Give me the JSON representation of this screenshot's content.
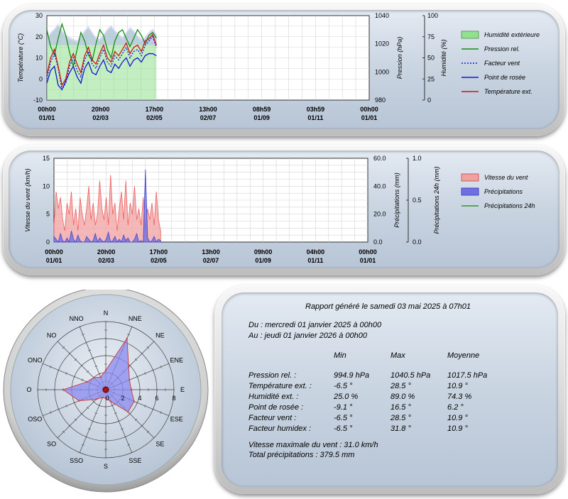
{
  "colors": {
    "humidity_fill": "#8fe08f",
    "humidity_band": "#b8b8f0",
    "pressure": "#138f13",
    "windchill": "#1a1add",
    "dewpoint": "#1515d0",
    "temperature": "#d01515",
    "wind_fill": "#f2a0a0",
    "wind_stroke": "#ee6060",
    "rain_fill": "#7070e0",
    "rain24": "#2a9a2a",
    "rose_fill": "#8a8af0",
    "rose_stroke": "#cc4444"
  },
  "chart_data": [
    {
      "type": "line",
      "x_tick_labels": [
        [
          "00h00",
          "01/01"
        ],
        [
          "20h00",
          "02/03"
        ],
        [
          "17h00",
          "02/05"
        ],
        [
          "13h00",
          "02/07"
        ],
        [
          "08h59",
          "01/09"
        ],
        [
          "03h59",
          "01/11"
        ],
        [
          "00h00",
          "01/01"
        ]
      ],
      "ylabel_left": "Température (°C)",
      "ylim_left": [
        -10,
        30
      ],
      "yticks_left": [
        "30",
        "20",
        "10",
        "0",
        "-10"
      ],
      "ylabel_pressure": "Pression (hPa)",
      "ylim_pressure": [
        980,
        1040
      ],
      "yticks_pressure": [
        "1040",
        "1020",
        "1000",
        "980"
      ],
      "ylabel_humidity": "Humidité (%)",
      "ylim_humidity": [
        0,
        100
      ],
      "yticks_humidity": [
        "100",
        "75",
        "50",
        "25",
        "0"
      ],
      "grid": true,
      "legend_position": "right",
      "data_extent_fraction": 0.34,
      "series": [
        {
          "name": "Humidité extérieure",
          "kind": "area",
          "axis": "humidity",
          "values": [
            70,
            78,
            82,
            88,
            80,
            75,
            72,
            70,
            68,
            74,
            80,
            85,
            78,
            72,
            70,
            75,
            82,
            86,
            80,
            76,
            72,
            78,
            84,
            80,
            74,
            70,
            72,
            78,
            82,
            76
          ]
        },
        {
          "name": "Pression rel.",
          "kind": "line",
          "axis": "pressure",
          "values": [
            1030,
            1018,
            1012,
            1024,
            1034,
            1026,
            1014,
            1004,
            1016,
            1028,
            1022,
            1012,
            1008,
            1020,
            1030,
            1026,
            1016,
            1010,
            1022,
            1028,
            1030,
            1024,
            1018,
            1024,
            1030,
            1026,
            1020,
            1026,
            1028,
            1024
          ]
        },
        {
          "name": "Facteur vent",
          "kind": "dotted",
          "axis": "temperature",
          "values": [
            0,
            8,
            12,
            5,
            -5,
            -2,
            6,
            10,
            4,
            1,
            9,
            13,
            7,
            5,
            10,
            14,
            8,
            6,
            11,
            9,
            12,
            15,
            10,
            13,
            14,
            11,
            16,
            18,
            20,
            15
          ]
        },
        {
          "name": "Point de rosée",
          "kind": "line",
          "axis": "temperature",
          "values": [
            -2,
            4,
            6,
            -3,
            -5,
            -1,
            3,
            6,
            1,
            -2,
            5,
            8,
            3,
            2,
            6,
            9,
            4,
            3,
            7,
            5,
            8,
            10,
            6,
            9,
            10,
            8,
            11,
            12,
            12,
            11
          ]
        },
        {
          "name": "Température ext.",
          "kind": "line",
          "axis": "temperature",
          "values": [
            2,
            10,
            14,
            6,
            -3,
            0,
            8,
            12,
            7,
            3,
            11,
            15,
            9,
            7,
            12,
            16,
            10,
            8,
            13,
            11,
            14,
            17,
            12,
            15,
            16,
            13,
            18,
            19,
            21,
            16
          ]
        }
      ]
    },
    {
      "type": "area",
      "x_tick_labels": [
        [
          "00h00",
          "01/01"
        ],
        [
          "20h00",
          "02/03"
        ],
        [
          "17h00",
          "02/05"
        ],
        [
          "13h00",
          "02/07"
        ],
        [
          "09h00",
          "01/09"
        ],
        [
          "04h00",
          "01/11"
        ],
        [
          "00h00",
          "01/01"
        ]
      ],
      "ylabel_left": "Vitesse du vent (km/h)",
      "ylim_left": [
        0,
        15
      ],
      "yticks_left": [
        "15",
        "10",
        "5",
        "0"
      ],
      "ylabel_rain": "Précipitations (mm)",
      "ylim_rain": [
        0,
        60
      ],
      "yticks_rain": [
        "60.0",
        "40.0",
        "20.0",
        "0.0"
      ],
      "ylabel_rain24": "Précipitations 24h (mm)",
      "ylim_rain24": [
        0,
        1
      ],
      "yticks_rain24": [
        "1.0",
        "0.5",
        "0.0"
      ],
      "grid": true,
      "legend_position": "right",
      "data_extent_fraction": 0.34,
      "series": [
        {
          "name": "Vitesse du vent",
          "kind": "area",
          "axis": "wind",
          "values": [
            3,
            9,
            6,
            8,
            4,
            2,
            7,
            5,
            9,
            3,
            6,
            2,
            8,
            5,
            3,
            6,
            10,
            4,
            7,
            3,
            5,
            11,
            6,
            4,
            8,
            3,
            12,
            5,
            7,
            2,
            6,
            9,
            4,
            11,
            3,
            7,
            5,
            10,
            4,
            6,
            3,
            8,
            2,
            6,
            4,
            7,
            3,
            9,
            4,
            2
          ]
        },
        {
          "name": "Précipitations",
          "kind": "area",
          "axis": "rain",
          "values": [
            4,
            2,
            0,
            6,
            1,
            0,
            3,
            0,
            8,
            2,
            0,
            5,
            1,
            0,
            0,
            4,
            2,
            0,
            1,
            6,
            0,
            3,
            1,
            0,
            2,
            7,
            0,
            1,
            4,
            0,
            2,
            0,
            5,
            1,
            3,
            0,
            0,
            2,
            6,
            0,
            1,
            0,
            52,
            3,
            0,
            1,
            4,
            0,
            2,
            1
          ]
        },
        {
          "name": "Précipitations 24h",
          "kind": "line",
          "axis": "rain24",
          "values": []
        }
      ]
    },
    {
      "type": "radar",
      "directions": [
        "N",
        "NNE",
        "NE",
        "ENE",
        "E",
        "ESE",
        "SE",
        "SSE",
        "S",
        "SSO",
        "SO",
        "OSO",
        "O",
        "ONO",
        "NO",
        "NNO"
      ],
      "rlim": [
        0,
        8
      ],
      "rticks": [
        "0",
        "2",
        "4",
        "6",
        "8"
      ],
      "values": [
        2.3,
        6.5,
        3.8,
        3.0,
        3.0,
        3.6,
        3.7,
        1.5,
        1.0,
        1.0,
        1.6,
        3.4,
        5.0,
        2.4,
        2.0,
        1.6
      ]
    }
  ],
  "report": {
    "title": "Rapport généré le samedi 03 mai 2025 à 07h01",
    "from": "Du : mercredi 01 janvier 2025 à 00h00",
    "to": "Au : jeudi 01 janvier 2026 à 00h00",
    "headers": [
      "Min",
      "Max",
      "Moyenne"
    ],
    "rows": [
      {
        "label": "Pression rel. :",
        "min": "994.9 hPa",
        "max": "1040.5 hPa",
        "avg": "1017.5 hPa"
      },
      {
        "label": "Température ext. :",
        "min": "-6.5 °",
        "max": "28.5 °",
        "avg": "10.9 °"
      },
      {
        "label": "Humidité ext. :",
        "min": "25.0 %",
        "max": "89.0 %",
        "avg": "74.3 %"
      },
      {
        "label": "Point de rosée :",
        "min": "-9.1 °",
        "max": "16.5 °",
        "avg": "6.2 °"
      },
      {
        "label": "Facteur vent :",
        "min": "-6.5 °",
        "max": "28.5 °",
        "avg": "10.9 °"
      },
      {
        "label": "Facteur humidex :",
        "min": "-6.5 °",
        "max": "31.8 °",
        "avg": "10.9 °"
      }
    ],
    "max_wind": "Vitesse maximale du vent : 31.0 km/h",
    "total_rain": "Total précipitations : 379.5 mm"
  }
}
